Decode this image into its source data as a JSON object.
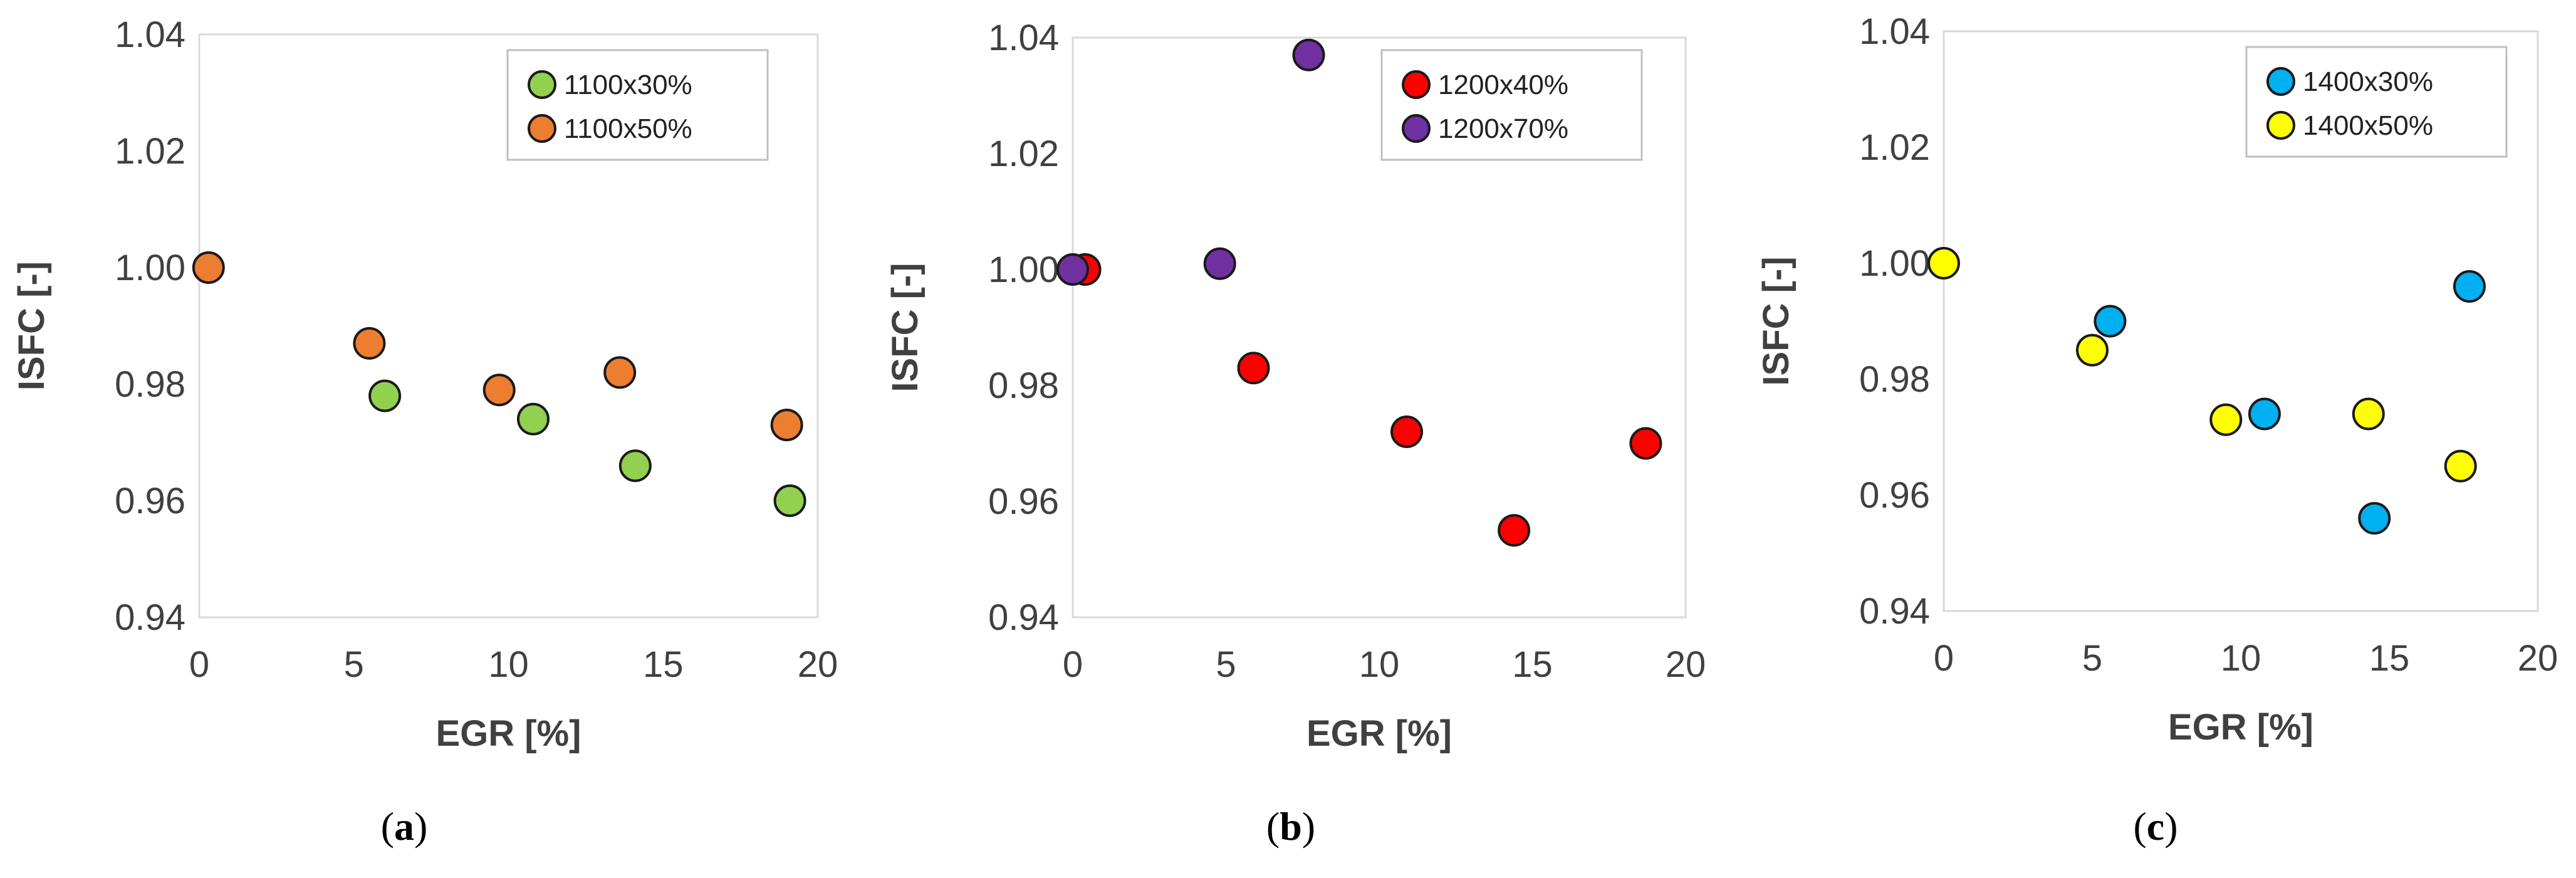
{
  "chart_data": [
    {
      "id": "a",
      "type": "scatter",
      "caption": "a",
      "xlabel": "EGR [%]",
      "ylabel": "ISFC [-]",
      "xlim": [
        0,
        20
      ],
      "ylim": [
        0.94,
        1.04
      ],
      "xticks": [
        "0",
        "5",
        "10",
        "15",
        "20"
      ],
      "yticks": [
        "0.94",
        "0.96",
        "0.98",
        "1.00",
        "1.02",
        "1.04"
      ],
      "legend_position": "top-right",
      "grid": false,
      "series": [
        {
          "name": "1100x30%",
          "color": "#92d050",
          "points": [
            [
              6.0,
              0.978
            ],
            [
              10.8,
              0.974
            ],
            [
              14.1,
              0.966
            ],
            [
              19.1,
              0.96
            ]
          ]
        },
        {
          "name": "1100x50%",
          "color": "#ed7d31",
          "points": [
            [
              0.3,
              1.0
            ],
            [
              5.5,
              0.987
            ],
            [
              9.7,
              0.979
            ],
            [
              13.6,
              0.982
            ],
            [
              19.0,
              0.973
            ]
          ]
        }
      ]
    },
    {
      "id": "b",
      "type": "scatter",
      "caption": "b",
      "xlabel": "EGR [%]",
      "ylabel": "ISFC [-]",
      "xlim": [
        0,
        20
      ],
      "ylim": [
        0.94,
        1.04
      ],
      "xticks": [
        "0",
        "5",
        "10",
        "15",
        "20"
      ],
      "yticks": [
        "0.94",
        "0.96",
        "0.98",
        "1.00",
        "1.02",
        "1.04"
      ],
      "legend_position": "top-right",
      "grid": false,
      "series": [
        {
          "name": "1200x40%",
          "color": "#ff0000",
          "points": [
            [
              0.4,
              1.0
            ],
            [
              5.9,
              0.983
            ],
            [
              10.9,
              0.972
            ],
            [
              14.4,
              0.955
            ],
            [
              18.7,
              0.97
            ]
          ]
        },
        {
          "name": "1200x70%",
          "color": "#7030a0",
          "points": [
            [
              0.0,
              1.0
            ],
            [
              4.8,
              1.001
            ],
            [
              7.7,
              1.037
            ]
          ]
        }
      ]
    },
    {
      "id": "c",
      "type": "scatter",
      "caption": "c",
      "xlabel": "EGR [%]",
      "ylabel": "ISFC [-]",
      "xlim": [
        0,
        20
      ],
      "ylim": [
        0.94,
        1.04
      ],
      "xticks": [
        "0",
        "5",
        "10",
        "15",
        "20"
      ],
      "yticks": [
        "0.94",
        "0.96",
        "0.98",
        "1.00",
        "1.02",
        "1.04"
      ],
      "legend_position": "top-right",
      "grid": false,
      "series": [
        {
          "name": "1400x30%",
          "color": "#00b0f0",
          "points": [
            [
              5.6,
              0.99
            ],
            [
              10.8,
              0.974
            ],
            [
              14.5,
              0.956
            ],
            [
              17.7,
              0.996
            ]
          ]
        },
        {
          "name": "1400x50%",
          "color": "#ffff00",
          "points": [
            [
              0.0,
              1.0
            ],
            [
              5.0,
              0.985
            ],
            [
              9.5,
              0.973
            ],
            [
              14.3,
              0.974
            ],
            [
              17.4,
              0.965
            ]
          ]
        }
      ]
    }
  ]
}
